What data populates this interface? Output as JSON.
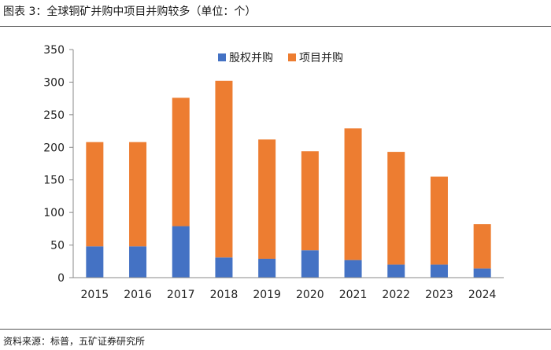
{
  "figure_title": "图表 3：全球铜矿并购中项目并购较多（单位：个）",
  "source": "资料来源：标普，五矿证券研究所",
  "colors": {
    "equity": "#4472C4",
    "project": "#ED7D31",
    "axis": "#888888"
  },
  "chart_data": {
    "type": "bar",
    "stacked": true,
    "categories": [
      "2015",
      "2016",
      "2017",
      "2018",
      "2019",
      "2020",
      "2021",
      "2022",
      "2023",
      "2024"
    ],
    "series": [
      {
        "name": "股权并购",
        "values": [
          48,
          48,
          79,
          31,
          29,
          42,
          27,
          20,
          20,
          14
        ]
      },
      {
        "name": "项目并购",
        "values": [
          160,
          160,
          197,
          271,
          183,
          152,
          202,
          173,
          135,
          68
        ]
      }
    ],
    "ylim": [
      0,
      350
    ],
    "yticks": [
      0,
      50,
      100,
      150,
      200,
      250,
      300,
      350
    ],
    "legend_position": "top-center",
    "grid": false,
    "title": "",
    "xlabel": "",
    "ylabel": ""
  }
}
